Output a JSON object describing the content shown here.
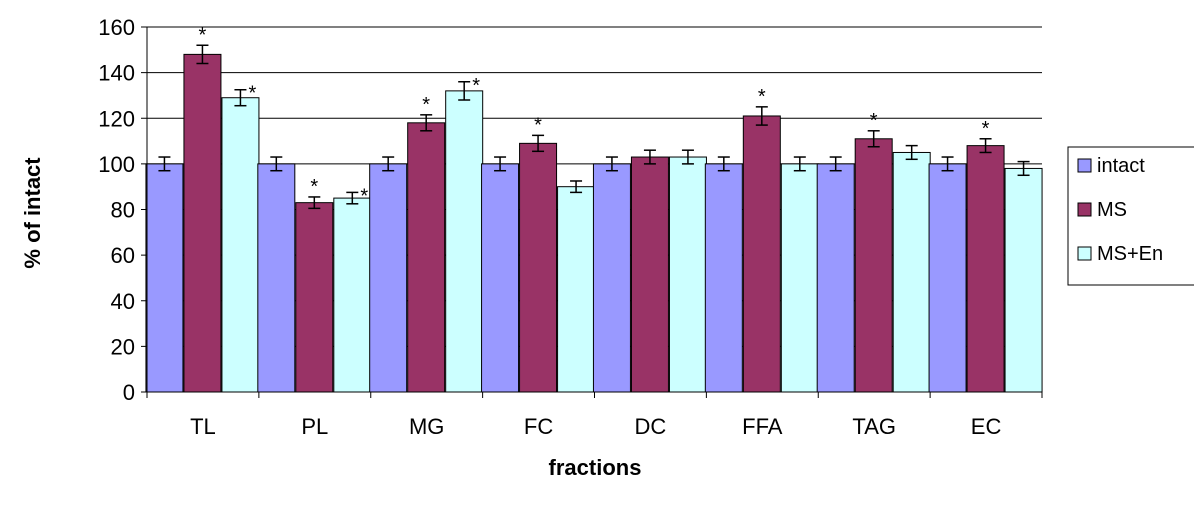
{
  "chart_data": {
    "type": "bar",
    "title": "",
    "xlabel": "fractions",
    "ylabel": "% of intact",
    "ylim": [
      0,
      160
    ],
    "yticks": [
      0,
      20,
      40,
      60,
      80,
      100,
      120,
      140,
      160
    ],
    "grid": true,
    "legend_position": "right",
    "categories": [
      "TL",
      "PL",
      "MG",
      "FC",
      "DC",
      "FFA",
      "TAG",
      "EC"
    ],
    "series": [
      {
        "name": "intact",
        "color": "#9999FF",
        "values": [
          100,
          100,
          100,
          100,
          100,
          100,
          100,
          100
        ],
        "errors": [
          3,
          3,
          3,
          3,
          3,
          3,
          3,
          3
        ],
        "significant": [
          false,
          false,
          false,
          false,
          false,
          false,
          false,
          false
        ]
      },
      {
        "name": "MS",
        "color": "#993366",
        "values": [
          148,
          83,
          118,
          109,
          103,
          121,
          111,
          108
        ],
        "errors": [
          4,
          2.5,
          3.5,
          3.5,
          3,
          4,
          3.5,
          3
        ],
        "significant": [
          true,
          true,
          true,
          true,
          false,
          true,
          true,
          true
        ]
      },
      {
        "name": "MS+En",
        "color": "#CCFFFF",
        "values": [
          129,
          85,
          132,
          90,
          103,
          100,
          105,
          98
        ],
        "errors": [
          3.5,
          2.5,
          4,
          2.5,
          3,
          3,
          3,
          3
        ],
        "significant": [
          true,
          true,
          true,
          false,
          false,
          false,
          false,
          false
        ]
      }
    ],
    "significance_marker": "*"
  }
}
